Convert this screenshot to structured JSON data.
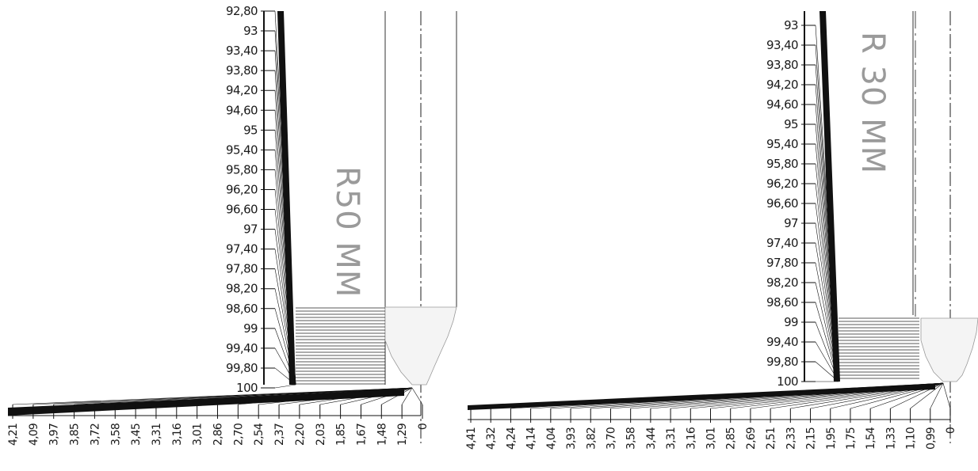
{
  "panels": [
    {
      "id": "left",
      "title": "R50 MM",
      "vertical_scale": [
        "92,80",
        "93",
        "93,40",
        "93,80",
        "94,20",
        "94,60",
        "95",
        "95,40",
        "95,80",
        "96,20",
        "96,60",
        "97",
        "97,40",
        "97,80",
        "98,20",
        "98,60",
        "99",
        "99,40",
        "99,80",
        "100"
      ],
      "horizontal_scale": [
        "4,21",
        "4,09",
        "3,97",
        "3,85",
        "3,72",
        "3,58",
        "3,45",
        "3,31",
        "3,16",
        "3,01",
        "2,86",
        "2,70",
        "2,54",
        "2,37",
        "2,20",
        "2,03",
        "1,85",
        "1,67",
        "1,48",
        "1,29",
        "0"
      ]
    },
    {
      "id": "right",
      "title": "R 30 MM",
      "vertical_scale": [
        "93",
        "93,40",
        "93,80",
        "94,20",
        "94,60",
        "95",
        "95,40",
        "95,80",
        "96,20",
        "96,60",
        "97",
        "97,40",
        "97,80",
        "98,20",
        "98,60",
        "99",
        "99,40",
        "99,80",
        "100"
      ],
      "horizontal_scale": [
        "4,41",
        "4,32",
        "4,24",
        "4,14",
        "4,04",
        "3,93",
        "3,82",
        "3,70",
        "3,58",
        "3,44",
        "3,31",
        "3,16",
        "3,01",
        "2,85",
        "2,69",
        "2,51",
        "2,33",
        "2,15",
        "1,95",
        "1,75",
        "1,54",
        "1,33",
        "1,10",
        "0,99",
        "0"
      ]
    }
  ]
}
